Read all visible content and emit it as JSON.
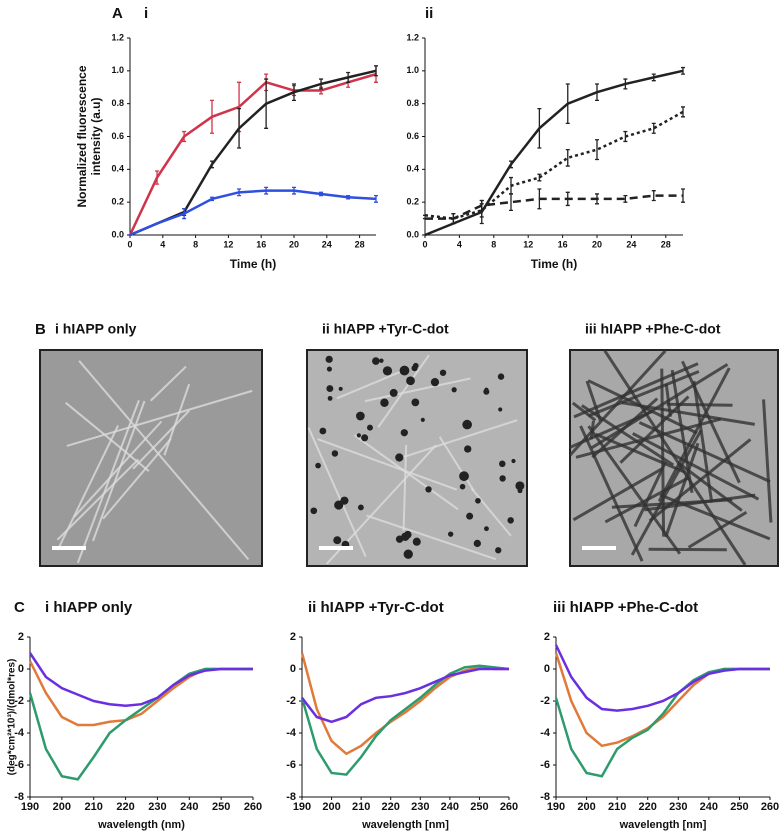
{
  "panel_labels": [
    "A",
    "B",
    "C"
  ],
  "panel_b": {
    "images": [
      "i hIAPP only",
      "ii hIAPP +Tyr-C-dot",
      "iii hIAPP +Phe-C-dot"
    ]
  },
  "chart_data": [
    {
      "type": "line",
      "title": "i",
      "x_label": "Time (h)",
      "y_label": [
        "Normalized fluorescence",
        "intensity (a.u)"
      ],
      "x": [
        0,
        3.3,
        6.6,
        10,
        13.3,
        16.6,
        20,
        23.3,
        26.6,
        30
      ],
      "xlim": [
        0,
        30
      ],
      "xticks": [
        0,
        4,
        8,
        12,
        16,
        20,
        24,
        28
      ],
      "ylim": [
        0,
        1.2
      ],
      "yticks": [
        {
          "value": 0,
          "label": "0.0"
        },
        0.2,
        0.4,
        0.6,
        0.8,
        {
          "value": 1,
          "label": "1.0"
        },
        1.2
      ],
      "series": [
        {
          "color": "#d0344a",
          "values": [
            0,
            0.35,
            0.6,
            0.72,
            0.78,
            0.93,
            0.88,
            0.88,
            0.93,
            0.98
          ],
          "errors": [
            0,
            0.04,
            0.03,
            0.1,
            0.15,
            0.05,
            0.03,
            0.02,
            0.03,
            0.05
          ]
        },
        {
          "color": "#222222",
          "values": [
            0,
            0.07,
            0.14,
            0.43,
            0.65,
            0.8,
            0.87,
            0.92,
            0.96,
            1.0
          ],
          "errors": [
            0,
            0,
            0.02,
            0.02,
            0.12,
            0.15,
            0.05,
            0.03,
            0.03,
            0.03
          ]
        },
        {
          "color": "#2f4fe0",
          "values": [
            0,
            0.07,
            0.13,
            0.22,
            0.26,
            0.27,
            0.27,
            0.25,
            0.23,
            0.22
          ],
          "errors": [
            0,
            0,
            0.03,
            0.01,
            0.02,
            0.02,
            0.02,
            0.01,
            0.01,
            0.02
          ]
        }
      ]
    },
    {
      "type": "line",
      "title": "ii",
      "x_label": "Time (h)",
      "x": [
        0,
        3.3,
        6.6,
        10,
        13.3,
        16.6,
        20,
        23.3,
        26.6,
        30
      ],
      "xlim": [
        0,
        30
      ],
      "xticks": [
        0,
        4,
        8,
        12,
        16,
        20,
        24,
        28
      ],
      "ylim": [
        0,
        1.2
      ],
      "yticks": [
        {
          "value": 0,
          "label": "0.0"
        },
        0.2,
        0.4,
        0.6,
        0.8,
        {
          "value": 1,
          "label": "1.0"
        },
        1.2
      ],
      "series": [
        {
          "color": "#222222",
          "dash": "solid",
          "values": [
            0,
            0.07,
            0.14,
            0.43,
            0.65,
            0.8,
            0.87,
            0.92,
            0.96,
            1.0
          ],
          "errors": [
            0,
            0,
            0.07,
            0.02,
            0.12,
            0.12,
            0.05,
            0.03,
            0.02,
            0.02
          ]
        },
        {
          "color": "#222222",
          "dash": "dotted",
          "values": [
            0.12,
            0.1,
            0.15,
            0.3,
            0.35,
            0.47,
            0.52,
            0.6,
            0.65,
            0.75
          ],
          "errors": [
            0,
            0.03,
            0.04,
            0.05,
            0.02,
            0.05,
            0.06,
            0.03,
            0.03,
            0.03
          ]
        },
        {
          "color": "#222222",
          "dash": "dashed",
          "values": [
            0.1,
            0.1,
            0.18,
            0.2,
            0.22,
            0.22,
            0.22,
            0.22,
            0.24,
            0.24
          ],
          "errors": [
            0,
            0.03,
            0.03,
            0.05,
            0.06,
            0.04,
            0.03,
            0.02,
            0.03,
            0.04
          ]
        }
      ]
    },
    {
      "type": "line",
      "title": "i hIAPP only",
      "x_label": "wavelength (nm)",
      "y_label": [
        "(deg*cm²*10³)/(dmol*res)"
      ],
      "x": [
        190,
        195,
        200,
        205,
        210,
        215,
        220,
        225,
        230,
        235,
        240,
        245,
        250,
        255,
        260
      ],
      "xlim": [
        190,
        260
      ],
      "xticks": [
        190,
        200,
        210,
        220,
        230,
        240,
        250,
        260
      ],
      "ylim": [
        -8,
        2
      ],
      "yticks": [
        -8,
        -6,
        -4,
        -2,
        0,
        2
      ],
      "series": [
        {
          "color": "#e07a3a",
          "values": [
            0.5,
            -1.5,
            -3,
            -3.5,
            -3.5,
            -3.3,
            -3.2,
            -2.8,
            -2,
            -1.2,
            -0.5,
            0,
            0,
            0,
            0
          ]
        },
        {
          "color": "#2e9b6e",
          "values": [
            -1.5,
            -5,
            -6.7,
            -6.9,
            -5.5,
            -4,
            -3.2,
            -2.5,
            -1.8,
            -1,
            -0.3,
            0,
            0,
            0,
            0
          ]
        },
        {
          "color": "#6a2fe0",
          "values": [
            1,
            -0.5,
            -1.2,
            -1.6,
            -2,
            -2.2,
            -2.3,
            -2.2,
            -1.8,
            -1,
            -0.4,
            -0.1,
            0,
            0,
            0
          ]
        }
      ]
    },
    {
      "type": "line",
      "title": "ii hIAPP +Tyr-C-dot",
      "x_label": "wavelength [nm]",
      "x": [
        190,
        195,
        200,
        205,
        210,
        215,
        220,
        225,
        230,
        235,
        240,
        245,
        250,
        255,
        260
      ],
      "xlim": [
        190,
        260
      ],
      "xticks": [
        190,
        200,
        210,
        220,
        230,
        240,
        250,
        260
      ],
      "ylim": [
        -8,
        2
      ],
      "yticks": [
        -8,
        -6,
        -4,
        -2,
        0,
        2
      ],
      "series": [
        {
          "color": "#e07a3a",
          "values": [
            1,
            -2.5,
            -4.5,
            -5.3,
            -4.8,
            -4,
            -3.3,
            -2.7,
            -2,
            -1.2,
            -0.5,
            -0.1,
            0.1,
            0,
            0
          ]
        },
        {
          "color": "#2e9b6e",
          "values": [
            -1.8,
            -5,
            -6.5,
            -6.6,
            -5.5,
            -4.2,
            -3.2,
            -2.5,
            -1.8,
            -1,
            -0.3,
            0.1,
            0.2,
            0.1,
            0
          ]
        },
        {
          "color": "#6a2fe0",
          "values": [
            -1.8,
            -3,
            -3.3,
            -3,
            -2.2,
            -1.8,
            -1.7,
            -1.5,
            -1.2,
            -0.8,
            -0.4,
            -0.2,
            0,
            0,
            0
          ]
        }
      ]
    },
    {
      "type": "line",
      "title": "iii hIAPP +Phe-C-dot",
      "x_label": "wavelength [nm]",
      "x": [
        190,
        195,
        200,
        205,
        210,
        215,
        220,
        225,
        230,
        235,
        240,
        245,
        250,
        255,
        260
      ],
      "xlim": [
        190,
        260
      ],
      "xticks": [
        190,
        200,
        210,
        220,
        230,
        240,
        250,
        260
      ],
      "ylim": [
        -8,
        2
      ],
      "yticks": [
        -8,
        -6,
        -4,
        -2,
        0,
        2
      ],
      "series": [
        {
          "color": "#e07a3a",
          "values": [
            1,
            -2,
            -4,
            -4.8,
            -4.6,
            -4.2,
            -3.7,
            -3,
            -2,
            -1,
            -0.3,
            0,
            0,
            0,
            0
          ]
        },
        {
          "color": "#2e9b6e",
          "values": [
            -1.8,
            -5,
            -6.5,
            -6.7,
            -5,
            -4.3,
            -3.8,
            -2.8,
            -1.5,
            -0.7,
            -0.2,
            0,
            0,
            0,
            0
          ]
        },
        {
          "color": "#6a2fe0",
          "values": [
            1.5,
            -0.5,
            -1.8,
            -2.5,
            -2.6,
            -2.5,
            -2.3,
            -2,
            -1.5,
            -0.8,
            -0.3,
            -0.1,
            0,
            0,
            0
          ]
        }
      ]
    }
  ]
}
